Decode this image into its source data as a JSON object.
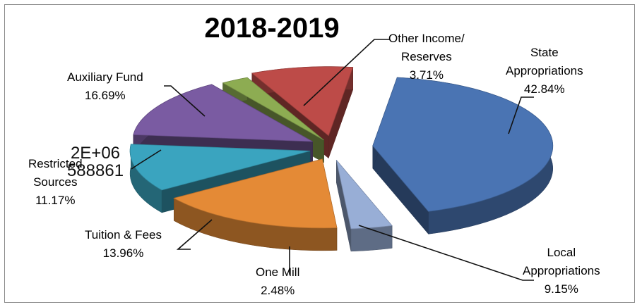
{
  "chart_data": {
    "type": "pie",
    "title": "2018-2019",
    "slices": [
      {
        "label_lines": [
          "State",
          "Appropriations"
        ],
        "value_text": "42.84%",
        "value": 42.84,
        "color": "#4a74b3"
      },
      {
        "label_lines": [
          "Local",
          "Appropriations"
        ],
        "value_text": "9.15%",
        "value": 9.15,
        "color": "#bd4b48"
      },
      {
        "label_lines": [
          "One Mill"
        ],
        "value_text": "2.48%",
        "value": 2.48,
        "color": "#8dac52"
      },
      {
        "label_lines": [
          "Tuition & Fees"
        ],
        "value_text": "13.96%",
        "value": 13.96,
        "color": "#7a5ba2"
      },
      {
        "label_lines": [
          "Restricted",
          "Sources"
        ],
        "value_text": "11.17%",
        "value": 11.17,
        "color": "#3aa4bf"
      },
      {
        "label_lines": [
          "Auxiliary Fund"
        ],
        "value_text": "16.69%",
        "value": 16.69,
        "color": "#e48a36"
      },
      {
        "label_lines": [
          "Other Income/",
          "Reserves"
        ],
        "value_text": "3.71%",
        "value": 3.71,
        "color": "#98aed6"
      }
    ],
    "overlay_text": [
      "2E+06",
      "588861"
    ]
  }
}
